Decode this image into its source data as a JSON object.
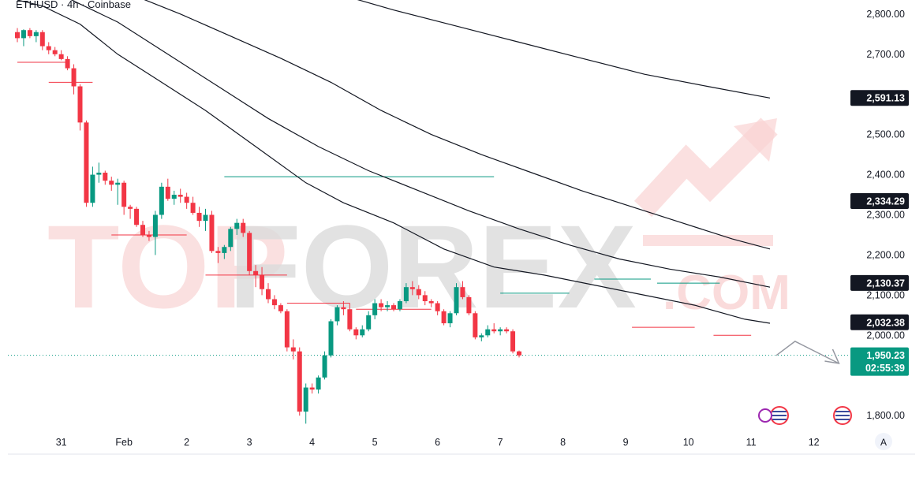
{
  "chart_data": {
    "type": "candlestick",
    "title": "ETHUSD · 4h · Coinbase",
    "watermark": {
      "left": "TOP",
      "right": "FOREX",
      "suffix": ".COM"
    },
    "ylim": [
      1765,
      2835
    ],
    "y_ticks": [
      {
        "label": "2,800.00",
        "value": 2800
      },
      {
        "label": "2,700.00",
        "value": 2700
      },
      {
        "label": "2,500.00",
        "value": 2500
      },
      {
        "label": "2,400.00",
        "value": 2400
      },
      {
        "label": "2,300.00",
        "value": 2300
      },
      {
        "label": "2,200.00",
        "value": 2200
      },
      {
        "label": "2,100.00",
        "value": 2100
      },
      {
        "label": "2,000.00",
        "value": 2000
      },
      {
        "label": "1,800.00",
        "value": 1800
      }
    ],
    "x_ticks": [
      {
        "label": "31",
        "index": 7
      },
      {
        "label": "Feb",
        "index": 17
      },
      {
        "label": "2",
        "index": 27
      },
      {
        "label": "3",
        "index": 37
      },
      {
        "label": "4",
        "index": 47
      },
      {
        "label": "5",
        "index": 57
      },
      {
        "label": "6",
        "index": 67
      },
      {
        "label": "7",
        "index": 77
      },
      {
        "label": "8",
        "index": 87
      },
      {
        "label": "9",
        "index": 97
      },
      {
        "label": "10",
        "index": 107
      },
      {
        "label": "11",
        "index": 117
      },
      {
        "label": "12",
        "index": 127
      }
    ],
    "price_tags": [
      {
        "label": "2,591.13",
        "value": 2591.13,
        "color": "#131722"
      },
      {
        "label": "2,334.29",
        "value": 2334.29,
        "color": "#131722"
      },
      {
        "label": "2,130.37",
        "value": 2130.37,
        "color": "#131722"
      },
      {
        "label": "2,032.38",
        "value": 2032.38,
        "color": "#131722"
      }
    ],
    "last_price": {
      "label": "1,950.23",
      "countdown": "02:55:39",
      "value": 1950.23,
      "color": "#089981"
    },
    "colors": {
      "up": "#089981",
      "down": "#f23645",
      "ma": "#131722",
      "level": "#f23645",
      "level_up": "#089981"
    },
    "candles": [
      [
        2755,
        2765,
        2730,
        2740
      ],
      [
        2740,
        2762,
        2720,
        2760
      ],
      [
        2760,
        2765,
        2740,
        2745
      ],
      [
        2745,
        2760,
        2730,
        2755
      ],
      [
        2755,
        2760,
        2710,
        2720
      ],
      [
        2720,
        2730,
        2700,
        2710
      ],
      [
        2710,
        2718,
        2695,
        2700
      ],
      [
        2700,
        2710,
        2685,
        2688
      ],
      [
        2688,
        2695,
        2660,
        2665
      ],
      [
        2665,
        2675,
        2600,
        2620
      ],
      [
        2620,
        2625,
        2510,
        2530
      ],
      [
        2530,
        2535,
        2320,
        2330
      ],
      [
        2330,
        2420,
        2320,
        2400
      ],
      [
        2400,
        2430,
        2380,
        2405
      ],
      [
        2405,
        2410,
        2375,
        2385
      ],
      [
        2385,
        2395,
        2360,
        2375
      ],
      [
        2375,
        2390,
        2325,
        2380
      ],
      [
        2380,
        2385,
        2300,
        2320
      ],
      [
        2320,
        2325,
        2290,
        2315
      ],
      [
        2315,
        2320,
        2270,
        2275
      ],
      [
        2275,
        2285,
        2245,
        2250
      ],
      [
        2250,
        2260,
        2235,
        2245
      ],
      [
        2245,
        2310,
        2200,
        2300
      ],
      [
        2300,
        2380,
        2290,
        2370
      ],
      [
        2370,
        2390,
        2335,
        2340
      ],
      [
        2340,
        2360,
        2325,
        2350
      ],
      [
        2350,
        2365,
        2330,
        2345
      ],
      [
        2345,
        2355,
        2315,
        2330
      ],
      [
        2330,
        2345,
        2300,
        2305
      ],
      [
        2305,
        2320,
        2270,
        2285
      ],
      [
        2285,
        2315,
        2260,
        2300
      ],
      [
        2300,
        2310,
        2205,
        2210
      ],
      [
        2210,
        2220,
        2180,
        2205
      ],
      [
        2205,
        2225,
        2190,
        2220
      ],
      [
        2220,
        2270,
        2210,
        2265
      ],
      [
        2265,
        2290,
        2250,
        2280
      ],
      [
        2280,
        2290,
        2245,
        2255
      ],
      [
        2255,
        2260,
        2150,
        2160
      ],
      [
        2160,
        2175,
        2120,
        2150
      ],
      [
        2150,
        2170,
        2100,
        2115
      ],
      [
        2115,
        2130,
        2080,
        2090
      ],
      [
        2090,
        2100,
        2065,
        2075
      ],
      [
        2075,
        2080,
        2055,
        2060
      ],
      [
        2060,
        2065,
        1960,
        1970
      ],
      [
        1970,
        1990,
        1940,
        1960
      ],
      [
        1960,
        1970,
        1800,
        1810
      ],
      [
        1810,
        1880,
        1780,
        1870
      ],
      [
        1870,
        1880,
        1855,
        1865
      ],
      [
        1865,
        1900,
        1855,
        1895
      ],
      [
        1895,
        1960,
        1890,
        1950
      ],
      [
        1950,
        2040,
        1945,
        2035
      ],
      [
        2035,
        2075,
        2025,
        2070
      ],
      [
        2070,
        2085,
        2050,
        2065
      ],
      [
        2065,
        2080,
        2010,
        2015
      ],
      [
        2015,
        2020,
        1990,
        2000
      ],
      [
        2000,
        2025,
        1995,
        2015
      ],
      [
        2015,
        2060,
        2010,
        2050
      ],
      [
        2050,
        2090,
        2040,
        2080
      ],
      [
        2080,
        2090,
        2060,
        2070
      ],
      [
        2070,
        2085,
        2060,
        2075
      ],
      [
        2075,
        2080,
        2060,
        2065
      ],
      [
        2065,
        2090,
        2060,
        2085
      ],
      [
        2085,
        2130,
        2080,
        2120
      ],
      [
        2120,
        2135,
        2100,
        2115
      ],
      [
        2115,
        2125,
        2090,
        2100
      ],
      [
        2100,
        2110,
        2075,
        2085
      ],
      [
        2085,
        2090,
        2070,
        2080
      ],
      [
        2080,
        2085,
        2050,
        2060
      ],
      [
        2060,
        2065,
        2025,
        2030
      ],
      [
        2030,
        2060,
        2020,
        2055
      ],
      [
        2055,
        2130,
        2050,
        2120
      ],
      [
        2120,
        2135,
        2090,
        2095
      ],
      [
        2095,
        2100,
        2050,
        2055
      ],
      [
        2055,
        2060,
        1990,
        1995
      ],
      [
        1995,
        2005,
        1985,
        2000
      ],
      [
        2000,
        2025,
        1995,
        2015
      ],
      [
        2015,
        2030,
        2005,
        2010
      ],
      [
        2010,
        2020,
        2000,
        2015
      ],
      [
        2015,
        2020,
        2005,
        2010
      ],
      [
        2010,
        2015,
        1955,
        1960
      ],
      [
        1960,
        1962,
        1945,
        1950
      ]
    ],
    "ma_lines": [
      {
        "points": [
          [
            0,
            2835
          ],
          [
            4,
            2820
          ],
          [
            10,
            2775
          ],
          [
            16,
            2700
          ],
          [
            22,
            2640
          ],
          [
            30,
            2560
          ],
          [
            38,
            2470
          ],
          [
            46,
            2380
          ],
          [
            52,
            2330
          ],
          [
            60,
            2280
          ],
          [
            68,
            2215
          ],
          [
            76,
            2170
          ],
          [
            84,
            2150
          ],
          [
            92,
            2125
          ],
          [
            100,
            2100
          ],
          [
            108,
            2075
          ],
          [
            116,
            2040
          ],
          [
            120,
            2030
          ]
        ]
      },
      {
        "points": [
          [
            0,
            2900
          ],
          [
            8,
            2840
          ],
          [
            16,
            2780
          ],
          [
            24,
            2700
          ],
          [
            32,
            2620
          ],
          [
            40,
            2540
          ],
          [
            48,
            2470
          ],
          [
            56,
            2410
          ],
          [
            64,
            2360
          ],
          [
            72,
            2310
          ],
          [
            80,
            2265
          ],
          [
            88,
            2225
          ],
          [
            96,
            2190
          ],
          [
            104,
            2165
          ],
          [
            112,
            2145
          ],
          [
            120,
            2120
          ]
        ]
      },
      {
        "points": [
          [
            10,
            2900
          ],
          [
            18,
            2850
          ],
          [
            26,
            2800
          ],
          [
            34,
            2745
          ],
          [
            42,
            2690
          ],
          [
            50,
            2630
          ],
          [
            58,
            2560
          ],
          [
            66,
            2500
          ],
          [
            74,
            2450
          ],
          [
            82,
            2405
          ],
          [
            90,
            2360
          ],
          [
            98,
            2320
          ],
          [
            106,
            2280
          ],
          [
            114,
            2240
          ],
          [
            120,
            2215
          ]
        ]
      },
      {
        "points": [
          [
            40,
            2900
          ],
          [
            50,
            2855
          ],
          [
            60,
            2810
          ],
          [
            70,
            2770
          ],
          [
            80,
            2730
          ],
          [
            90,
            2690
          ],
          [
            100,
            2650
          ],
          [
            110,
            2620
          ],
          [
            120,
            2591
          ]
        ]
      }
    ],
    "levels": [
      {
        "price": 2680,
        "from": 0,
        "to": 8,
        "kind": "down"
      },
      {
        "price": 2630,
        "from": 5,
        "to": 12,
        "kind": "down"
      },
      {
        "price": 2250,
        "from": 15,
        "to": 27,
        "kind": "down"
      },
      {
        "price": 2150,
        "from": 30,
        "to": 43,
        "kind": "down"
      },
      {
        "price": 2080,
        "from": 43,
        "to": 53,
        "kind": "down"
      },
      {
        "price": 2065,
        "from": 54,
        "to": 66,
        "kind": "down"
      },
      {
        "price": 2020,
        "from": 98,
        "to": 108,
        "kind": "down"
      },
      {
        "price": 2000,
        "from": 111,
        "to": 117,
        "kind": "down"
      },
      {
        "price": 2395,
        "from": 33,
        "to": 76,
        "kind": "up"
      },
      {
        "price": 2105,
        "from": 77,
        "to": 88,
        "kind": "up"
      },
      {
        "price": 2140,
        "from": 92,
        "to": 101,
        "kind": "up"
      },
      {
        "price": 2130,
        "from": 102,
        "to": 112,
        "kind": "up"
      }
    ],
    "projection": [
      [
        121,
        1950
      ],
      [
        124,
        1985
      ],
      [
        131,
        1930
      ]
    ]
  }
}
